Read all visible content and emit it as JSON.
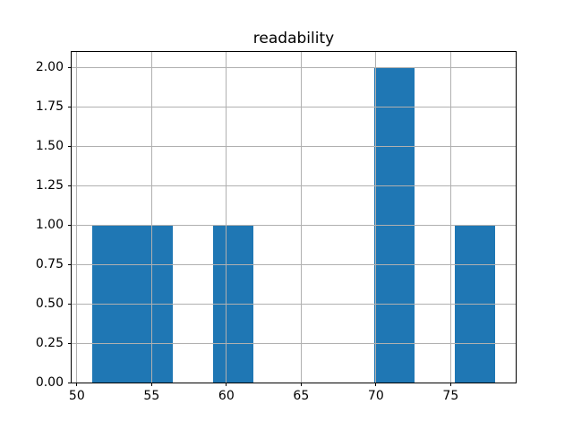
{
  "title": "readability",
  "chart_data": {
    "type": "bar",
    "subtype": "histogram",
    "title": "readability",
    "xlabel": "",
    "ylabel": "",
    "xlim": [
      49.65,
      79.35
    ],
    "ylim": [
      0,
      2.1
    ],
    "grid": true,
    "legend": false,
    "bin_edges": [
      51.0,
      53.7,
      56.4,
      59.1,
      61.8,
      64.5,
      67.2,
      69.9,
      72.6,
      75.3,
      78.0
    ],
    "counts": [
      1,
      1,
      0,
      1,
      0,
      0,
      0,
      2,
      0,
      1
    ],
    "x_tick_values": [
      50,
      55,
      60,
      65,
      70,
      75
    ],
    "x_tick_labels": [
      "50",
      "55",
      "60",
      "65",
      "70",
      "75"
    ],
    "y_tick_values": [
      0,
      0.25,
      0.5,
      0.75,
      1.0,
      1.25,
      1.5,
      1.75,
      2.0
    ],
    "y_tick_labels": [
      "0.00",
      "0.25",
      "0.50",
      "0.75",
      "1.00",
      "1.25",
      "1.50",
      "1.75",
      "2.00"
    ],
    "colors": {
      "bar": "#1f77b4",
      "grid": "#b0b0b0",
      "spine": "#000000",
      "text": "#000000",
      "background": "#ffffff"
    }
  }
}
